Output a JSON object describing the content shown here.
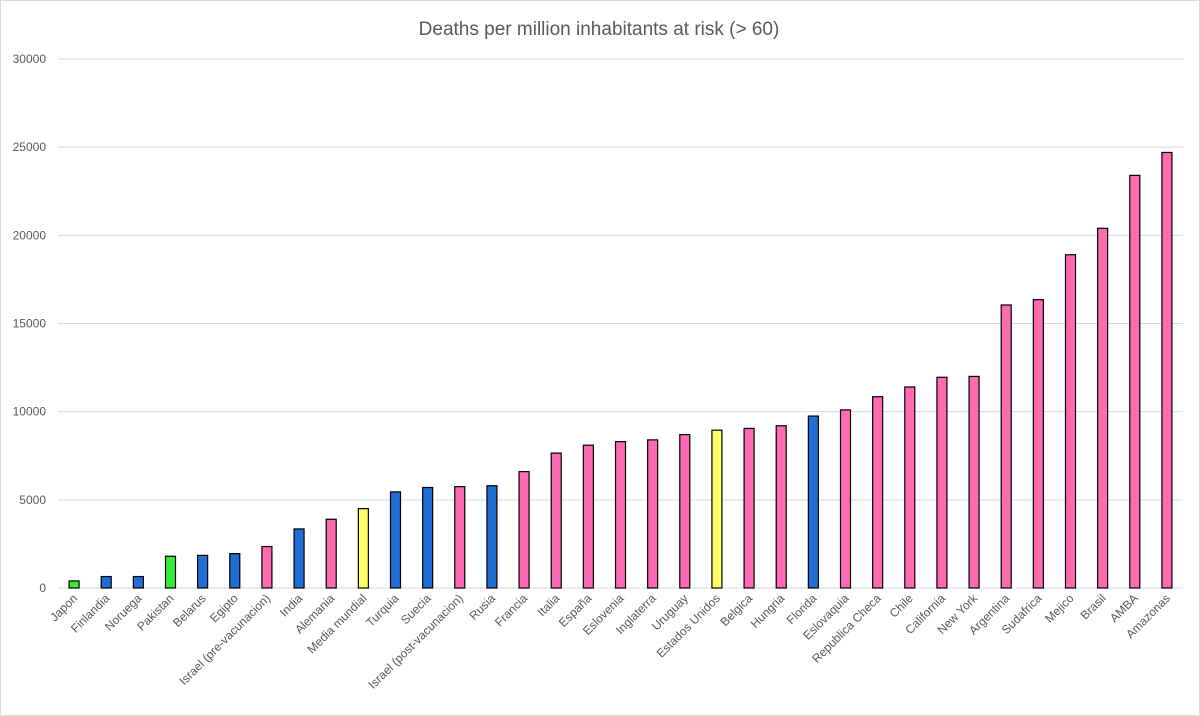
{
  "chart_data": {
    "type": "bar",
    "title": "Deaths per million inhabitants at risk (> 60)",
    "xlabel": "",
    "ylabel": "",
    "ylim": [
      0,
      30000
    ],
    "yticks": [
      0,
      5000,
      10000,
      15000,
      20000,
      25000,
      30000
    ],
    "grid": true,
    "colors": {
      "green": "#33ee33",
      "blue": "#1f6fd6",
      "pink": "#ff6ab0",
      "yellow": "#ffff66"
    },
    "categories": [
      "Japon",
      "Finlandia",
      "Noruega",
      "Pakistan",
      "Belarus",
      "Egipto",
      "Israel (pre-vacunacion)",
      "India",
      "Alemania",
      "Media mundial",
      "Turquia",
      "Suecia",
      "Israel (post-vacunacion)",
      "Rusia",
      "Francia",
      "Italia",
      "España",
      "Eslovenia",
      "Inglaterra",
      "Uruguay",
      "Estados Unidos",
      "Belgica",
      "Hungria",
      "Florida",
      "Eslovaquia",
      "Republica Checa",
      "Chile",
      "California",
      "New York",
      "Argentina",
      "Sudafrica",
      "Mejico",
      "Brasil",
      "AMBA",
      "Amazonas"
    ],
    "values": [
      400,
      650,
      650,
      1800,
      1850,
      1950,
      2350,
      3350,
      3900,
      4500,
      5450,
      5700,
      5750,
      5800,
      6600,
      7650,
      8100,
      8300,
      8400,
      8700,
      8950,
      9050,
      9200,
      9750,
      10100,
      10850,
      11400,
      11950,
      12000,
      16050,
      16350,
      18900,
      20400,
      23400,
      24700
    ],
    "bar_colors": [
      "green",
      "blue",
      "blue",
      "green",
      "blue",
      "blue",
      "pink",
      "blue",
      "pink",
      "yellow",
      "blue",
      "blue",
      "pink",
      "blue",
      "pink",
      "pink",
      "pink",
      "pink",
      "pink",
      "pink",
      "yellow",
      "pink",
      "pink",
      "blue",
      "pink",
      "pink",
      "pink",
      "pink",
      "pink",
      "pink",
      "pink",
      "pink",
      "pink",
      "pink",
      "pink"
    ]
  }
}
